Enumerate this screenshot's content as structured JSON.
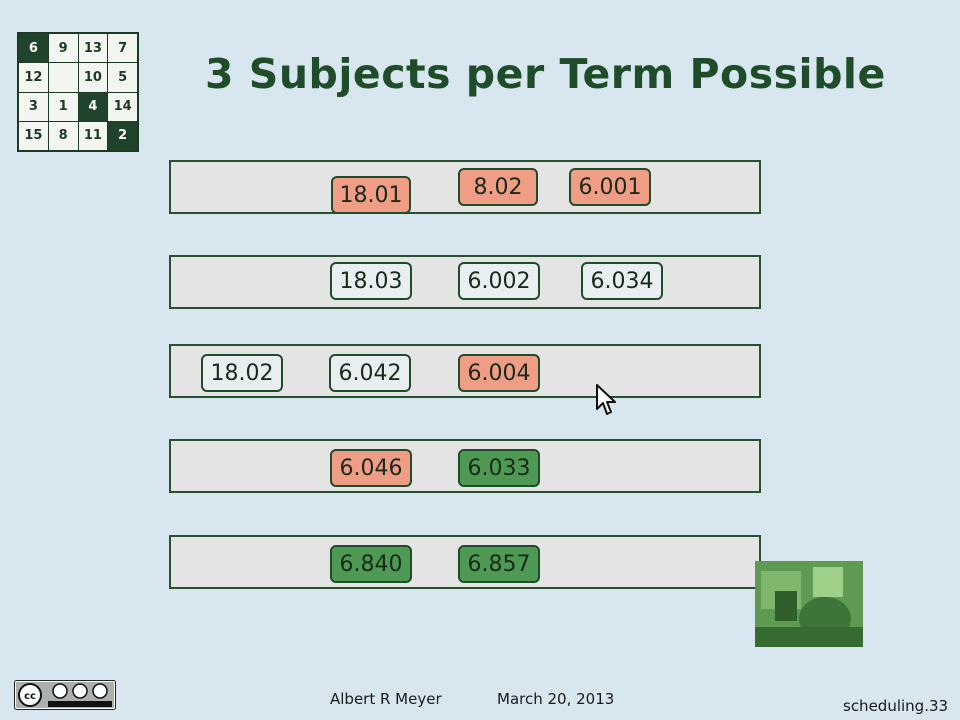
{
  "logo": {
    "cells": [
      {
        "label": "6",
        "dark": true
      },
      {
        "label": "9",
        "dark": false
      },
      {
        "label": "13",
        "dark": false
      },
      {
        "label": "7",
        "dark": false
      },
      {
        "label": "12",
        "dark": false
      },
      {
        "label": "",
        "dark": false
      },
      {
        "label": "10",
        "dark": false
      },
      {
        "label": "5",
        "dark": false
      },
      {
        "label": "3",
        "dark": false
      },
      {
        "label": "1",
        "dark": false
      },
      {
        "label": "4",
        "dark": true
      },
      {
        "label": "14",
        "dark": false
      },
      {
        "label": "15",
        "dark": false
      },
      {
        "label": "8",
        "dark": false
      },
      {
        "label": "11",
        "dark": false
      },
      {
        "label": "2",
        "dark": true
      }
    ]
  },
  "title": "3 Subjects per Term Possible",
  "terms": [
    [
      {
        "label": "18.01",
        "color": "salmon"
      },
      {
        "label": "8.02",
        "color": "salmon"
      },
      {
        "label": "6.001",
        "color": "salmon"
      }
    ],
    [
      {
        "label": "18.03",
        "color": "white"
      },
      {
        "label": "6.002",
        "color": "white"
      },
      {
        "label": "6.034",
        "color": "white"
      }
    ],
    [
      {
        "label": "18.02",
        "color": "white"
      },
      {
        "label": "6.042",
        "color": "white"
      },
      {
        "label": "6.004",
        "color": "salmon"
      }
    ],
    [
      {
        "label": "6.046",
        "color": "salmon"
      },
      {
        "label": "6.033",
        "color": "green"
      }
    ],
    [
      {
        "label": "6.840",
        "color": "green"
      },
      {
        "label": "6.857",
        "color": "green"
      }
    ]
  ],
  "footer": {
    "author": "Albert R Meyer",
    "date": "March 20, 2013",
    "slide": "scheduling.33"
  },
  "license_icon": "cc-by-nc-sa-icon"
}
